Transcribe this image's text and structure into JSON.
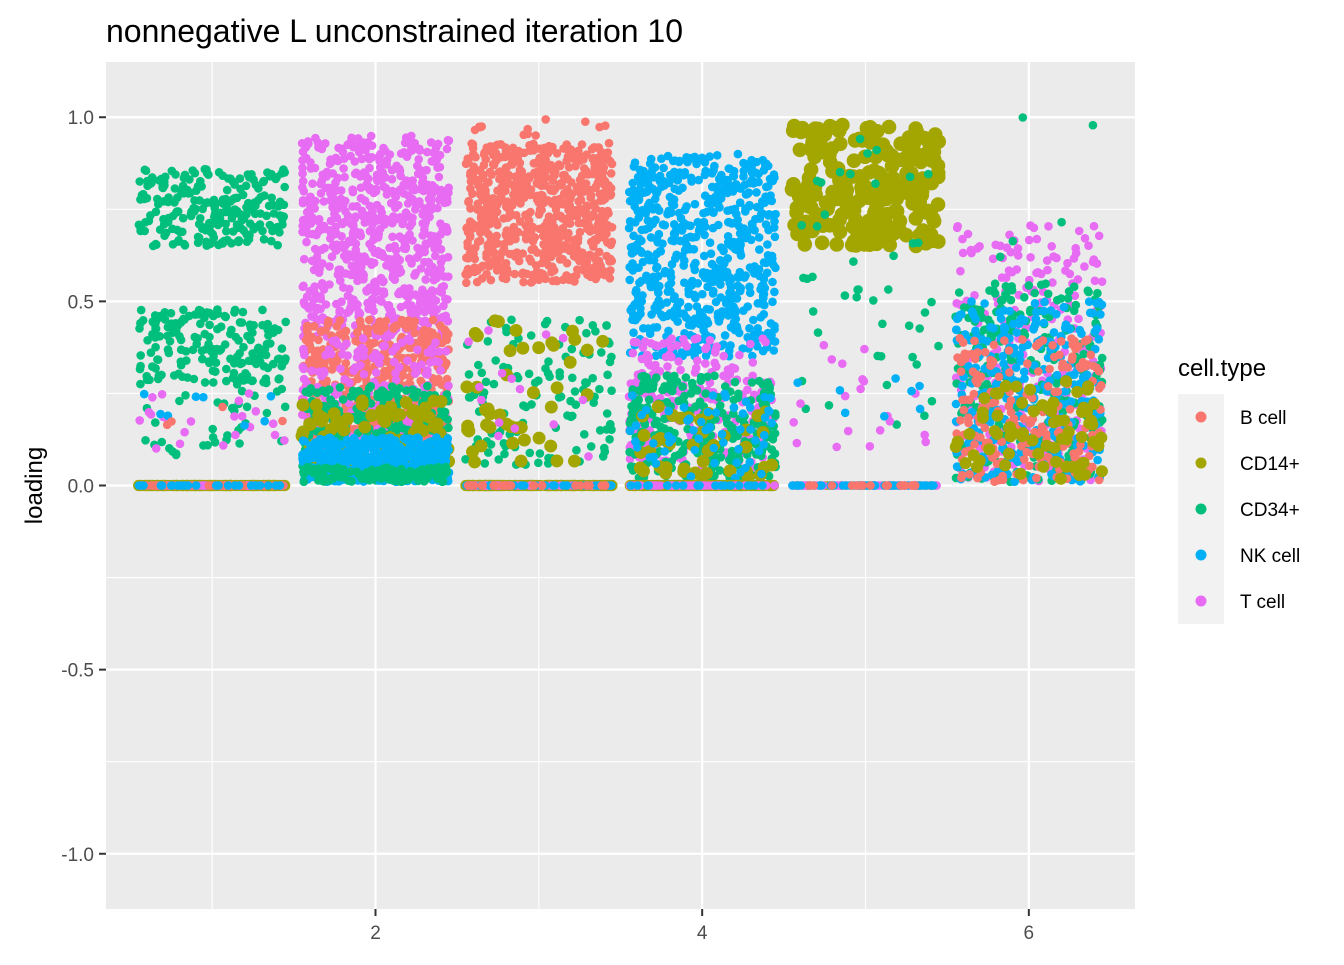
{
  "chart_data": {
    "type": "scatter",
    "title": "nonnegative L unconstrained iteration 10",
    "xlabel": "",
    "ylabel": "loading",
    "xlim": [
      0.35,
      6.65
    ],
    "ylim": [
      -1.15,
      1.15
    ],
    "x_ticks": [
      2,
      4,
      6
    ],
    "x_tick_labels": [
      "2",
      "4",
      "6"
    ],
    "y_ticks": [
      -1.0,
      -0.5,
      0.0,
      0.5,
      1.0
    ],
    "y_tick_labels": [
      "-1.0",
      "-0.5",
      "0.0",
      "0.5",
      "1.0"
    ],
    "grid": true,
    "legend": {
      "title": "cell.type",
      "placement": "right",
      "entries": [
        "B cell",
        "CD14+",
        "CD34+",
        "NK cell",
        "T cell"
      ]
    },
    "colors": {
      "B cell": "#F8766D",
      "CD14+": "#A3A500",
      "CD34+": "#00BF7D",
      "NK cell": "#00B0F6",
      "T cell": "#E76BF3"
    },
    "panel_background": "#EBEBEB",
    "jitter_width": 0.45,
    "factors": [
      {
        "x": 1,
        "groups": [
          {
            "type": "CD34+",
            "count": 420,
            "bands": [
              [
                0.65,
                0.86,
                0.6
              ],
              [
                0.28,
                0.48,
                0.4
              ]
            ]
          },
          {
            "type": "CD34+",
            "count": 40,
            "bands": [
              [
                0.08,
                0.3,
                1
              ]
            ]
          },
          {
            "type": "T cell",
            "count": 22,
            "bands": [
              [
                0.1,
                0.25,
                1
              ]
            ]
          },
          {
            "type": "NK cell",
            "count": 8,
            "bands": [
              [
                0.12,
                0.25,
                1
              ]
            ]
          },
          {
            "type": "B cell",
            "count": 4,
            "bands": [
              [
                0.13,
                0.24,
                1
              ]
            ]
          },
          {
            "type": "CD14+",
            "count": 160,
            "bands": [
              [
                0.0,
                0.0,
                1
              ]
            ],
            "size": 1.3
          },
          {
            "type": "T cell",
            "count": 80,
            "bands": [
              [
                0.0,
                0.0,
                1
              ]
            ]
          },
          {
            "type": "B cell",
            "count": 30,
            "bands": [
              [
                0.0,
                0.0,
                1
              ]
            ]
          },
          {
            "type": "NK cell",
            "count": 25,
            "bands": [
              [
                0.0,
                0.0,
                1
              ]
            ]
          }
        ]
      },
      {
        "x": 2,
        "groups": [
          {
            "type": "T cell",
            "count": 700,
            "bands": [
              [
                0.4,
                0.95,
                1
              ]
            ]
          },
          {
            "type": "B cell",
            "count": 450,
            "bands": [
              [
                0.12,
                0.45,
                1
              ]
            ]
          },
          {
            "type": "T cell",
            "count": 180,
            "bands": [
              [
                0.1,
                0.4,
                1
              ]
            ]
          },
          {
            "type": "CD34+",
            "count": 280,
            "bands": [
              [
                0.01,
                0.27,
                1
              ]
            ]
          },
          {
            "type": "CD14+",
            "count": 70,
            "bands": [
              [
                0.05,
                0.23,
                1
              ]
            ],
            "size": 1.5
          },
          {
            "type": "NK cell",
            "count": 450,
            "bands": [
              [
                0.01,
                0.13,
                1
              ]
            ]
          },
          {
            "type": "CD34+",
            "count": 150,
            "bands": [
              [
                0.01,
                0.05,
                1
              ]
            ]
          }
        ]
      },
      {
        "x": 3,
        "groups": [
          {
            "type": "B cell",
            "count": 650,
            "bands": [
              [
                0.55,
                0.93,
                1
              ]
            ]
          },
          {
            "type": "B cell",
            "count": 12,
            "bands": [
              [
                0.95,
                1.0,
                1
              ]
            ]
          },
          {
            "type": "CD34+",
            "count": 130,
            "bands": [
              [
                0.05,
                0.45,
                1
              ]
            ]
          },
          {
            "type": "CD14+",
            "count": 45,
            "bands": [
              [
                0.05,
                0.45,
                1
              ]
            ],
            "size": 1.5
          },
          {
            "type": "T cell",
            "count": 15,
            "bands": [
              [
                0.05,
                0.45,
                1
              ]
            ]
          },
          {
            "type": "CD14+",
            "count": 170,
            "bands": [
              [
                0.0,
                0.0,
                1
              ]
            ],
            "size": 1.3
          },
          {
            "type": "T cell",
            "count": 70,
            "bands": [
              [
                0.0,
                0.0,
                1
              ]
            ]
          },
          {
            "type": "NK cell",
            "count": 30,
            "bands": [
              [
                0.0,
                0.0,
                1
              ]
            ]
          },
          {
            "type": "B cell",
            "count": 20,
            "bands": [
              [
                0.0,
                0.0,
                1
              ]
            ]
          }
        ]
      },
      {
        "x": 4,
        "groups": [
          {
            "type": "NK cell",
            "count": 600,
            "bands": [
              [
                0.35,
                0.9,
                1
              ]
            ]
          },
          {
            "type": "T cell",
            "count": 260,
            "bands": [
              [
                0.05,
                0.4,
                1
              ]
            ]
          },
          {
            "type": "CD34+",
            "count": 280,
            "bands": [
              [
                0.02,
                0.3,
                1
              ]
            ]
          },
          {
            "type": "CD14+",
            "count": 40,
            "bands": [
              [
                0.02,
                0.22,
                1
              ]
            ],
            "size": 1.5
          },
          {
            "type": "NK cell",
            "count": 60,
            "bands": [
              [
                0.02,
                0.25,
                1
              ]
            ]
          },
          {
            "type": "CD14+",
            "count": 140,
            "bands": [
              [
                0.0,
                0.0,
                1
              ]
            ],
            "size": 1.3
          },
          {
            "type": "T cell",
            "count": 80,
            "bands": [
              [
                0.0,
                0.0,
                1
              ]
            ]
          },
          {
            "type": "NK cell",
            "count": 20,
            "bands": [
              [
                0.0,
                0.0,
                1
              ]
            ]
          }
        ]
      },
      {
        "x": 5,
        "groups": [
          {
            "type": "CD14+",
            "count": 230,
            "bands": [
              [
                0.65,
                0.98,
                1
              ]
            ],
            "size": 1.7
          },
          {
            "type": "CD34+",
            "count": 45,
            "bands": [
              [
                0.15,
                0.95,
                1
              ]
            ]
          },
          {
            "type": "T cell",
            "count": 20,
            "bands": [
              [
                0.1,
                0.4,
                1
              ]
            ]
          },
          {
            "type": "NK cell",
            "count": 8,
            "bands": [
              [
                0.13,
                0.3,
                1
              ]
            ]
          },
          {
            "type": "CD14+",
            "count": 60,
            "bands": [
              [
                0.0,
                0.0,
                1
              ]
            ]
          },
          {
            "type": "T cell",
            "count": 70,
            "bands": [
              [
                0.0,
                0.0,
                1
              ]
            ]
          },
          {
            "type": "NK cell",
            "count": 50,
            "bands": [
              [
                0.0,
                0.0,
                1
              ]
            ]
          },
          {
            "type": "B cell",
            "count": 20,
            "bands": [
              [
                0.0,
                0.0,
                1
              ]
            ]
          }
        ]
      },
      {
        "x": 6,
        "groups": [
          {
            "type": "T cell",
            "count": 260,
            "bands": [
              [
                0.01,
                0.72,
                1
              ]
            ]
          },
          {
            "type": "CD34+",
            "count": 260,
            "bands": [
              [
                0.01,
                0.55,
                1
              ]
            ]
          },
          {
            "type": "NK cell",
            "count": 280,
            "bands": [
              [
                0.01,
                0.5,
                1
              ]
            ]
          },
          {
            "type": "B cell",
            "count": 200,
            "bands": [
              [
                0.01,
                0.4,
                1
              ]
            ]
          },
          {
            "type": "CD14+",
            "count": 70,
            "bands": [
              [
                0.01,
                0.3,
                1
              ]
            ],
            "size": 1.4
          },
          {
            "type": "CD34+",
            "count": 5,
            "bands": [
              [
                0.6,
                1.0,
                1
              ]
            ]
          }
        ]
      }
    ]
  }
}
